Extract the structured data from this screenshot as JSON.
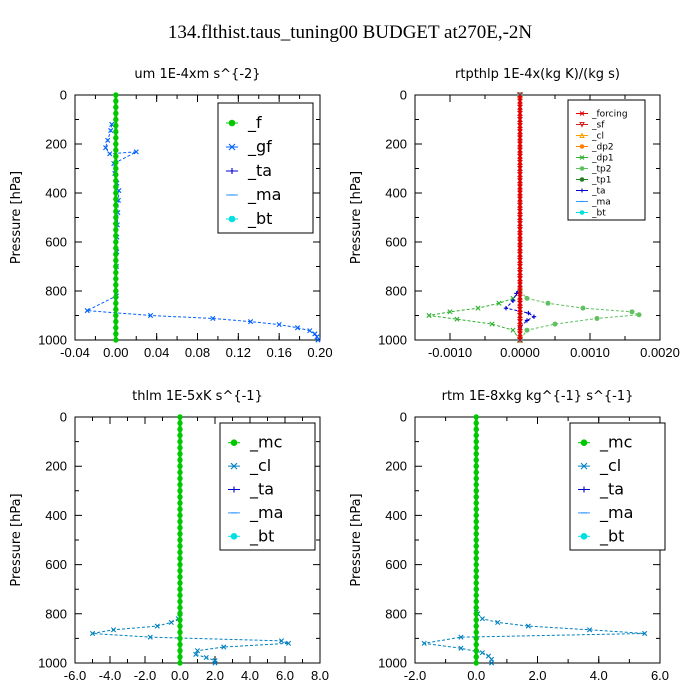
{
  "figure_title": "134.flthist.taus_tuning00  BUDGET at270E,-2N",
  "colors": {
    "f": "#00c800",
    "gf": "#0060ff",
    "ta": "#0000d0",
    "ma": "#3399ff",
    "bt": "#00e0e0",
    "mc": "#00c800",
    "cl": "#0080c0",
    "forcing": "#e00000",
    "sf": "#d02020",
    "cl_orange": "#ffa000",
    "dp2": "#ff8000",
    "dp1": "#30b030",
    "tp2": "#60c060",
    "tp1": "#208020"
  },
  "chart_data": [
    {
      "type": "line",
      "title": "um   1E-4xm s^{-2}",
      "ylabel": "Pressure [hPa]",
      "xlabel": "",
      "xlim": [
        -0.04,
        0.2
      ],
      "ylim": [
        1000,
        0
      ],
      "xticks": [
        "-0.04",
        "0.00",
        "0.04",
        "0.08",
        "0.12",
        "0.16",
        "0.20"
      ],
      "yticks": [
        "0",
        "200",
        "400",
        "600",
        "800",
        "1000"
      ],
      "legend": "top-right",
      "series": [
        {
          "name": "_f",
          "color_key": "f",
          "marker": "o",
          "x": [
            0,
            0,
            0,
            0,
            0,
            0,
            0,
            0,
            0,
            0,
            0,
            0,
            0,
            0,
            0,
            0,
            0,
            0,
            0,
            0,
            0,
            0,
            0,
            0,
            0,
            0,
            0,
            0,
            0,
            0,
            0,
            0,
            0,
            0,
            0,
            0,
            0,
            0,
            0,
            0,
            0
          ],
          "y": [
            0,
            25,
            50,
            75,
            100,
            125,
            150,
            175,
            200,
            225,
            250,
            275,
            300,
            325,
            350,
            375,
            400,
            425,
            450,
            475,
            500,
            525,
            550,
            575,
            600,
            625,
            650,
            675,
            700,
            725,
            750,
            775,
            800,
            825,
            850,
            875,
            900,
            925,
            950,
            975,
            1000
          ]
        },
        {
          "name": "_gf",
          "color_key": "gf",
          "marker": "x",
          "x": [
            -0.004,
            -0.005,
            -0.008,
            -0.01,
            -0.006,
            0.02,
            -0.002,
            -0.001,
            0.001,
            0.003,
            0.0025,
            0.002,
            0.0015,
            0.001,
            0.001,
            0.0005,
            0.0005,
            -0.028,
            0.034,
            0.095,
            0.132,
            0.16,
            0.178,
            0.19,
            0.195,
            0.197,
            0.198
          ],
          "y": [
            120,
            145,
            185,
            215,
            240,
            232,
            280,
            320,
            360,
            390,
            430,
            480,
            530,
            580,
            640,
            700,
            820,
            880,
            900,
            912,
            925,
            937,
            950,
            962,
            975,
            987,
            1000
          ]
        },
        {
          "name": "_ta",
          "color_key": "ta",
          "marker": "+",
          "x": [
            0,
            0,
            0,
            0,
            0,
            0
          ],
          "y": [
            0,
            200,
            400,
            600,
            800,
            1000
          ]
        },
        {
          "name": "_ma",
          "color_key": "ma",
          "marker": "-",
          "x": [
            0,
            0,
            0,
            0,
            0,
            0
          ],
          "y": [
            0,
            200,
            400,
            600,
            800,
            1000
          ]
        },
        {
          "name": "_bt",
          "color_key": "bt",
          "marker": "o",
          "x": [
            0,
            0,
            0,
            0,
            0,
            0
          ],
          "y": [
            0,
            200,
            400,
            600,
            800,
            1000
          ]
        }
      ]
    },
    {
      "type": "line",
      "title": "rtpthlp   1E-4x(kg K)/(kg s)",
      "ylabel": "Pressure [hPa]",
      "xlabel": "",
      "xlim": [
        -0.0015,
        0.002
      ],
      "ylim": [
        1000,
        0
      ],
      "xticks": [
        "-0.0010",
        "0.0000",
        "0.0010",
        "0.0020"
      ],
      "yticks": [
        "0",
        "200",
        "400",
        "600",
        "800",
        "1000"
      ],
      "legend": "top-right",
      "series": [
        {
          "name": "_forcing",
          "color_key": "forcing",
          "marker": "x",
          "x": [
            0,
            0,
            0,
            0,
            0,
            0,
            0,
            0,
            0,
            0,
            0,
            0,
            0,
            0,
            0,
            0,
            0,
            0,
            0,
            0,
            0,
            0,
            0,
            0,
            0,
            0,
            0,
            0,
            0,
            0,
            0,
            0,
            0,
            0,
            0,
            0,
            0,
            0,
            0,
            0,
            0
          ],
          "y": [
            0,
            25,
            50,
            75,
            100,
            125,
            150,
            175,
            200,
            225,
            250,
            275,
            300,
            325,
            350,
            375,
            400,
            425,
            450,
            475,
            500,
            525,
            550,
            575,
            600,
            625,
            650,
            675,
            700,
            725,
            750,
            775,
            800,
            825,
            850,
            875,
            900,
            925,
            950,
            975,
            1000
          ]
        },
        {
          "name": "_sf",
          "color_key": "sf",
          "marker": "v",
          "x": [
            0,
            0
          ],
          "y": [
            0,
            1000
          ]
        },
        {
          "name": "_cl",
          "color_key": "cl_orange",
          "marker": "^",
          "x": [
            0,
            0
          ],
          "y": [
            0,
            1000
          ]
        },
        {
          "name": "_dp2",
          "color_key": "dp2",
          "marker": "o",
          "x": [
            0,
            0
          ],
          "y": [
            0,
            1000
          ]
        },
        {
          "name": "_dp1",
          "color_key": "dp1",
          "marker": "x",
          "x": [
            0,
            -0.0001,
            -0.0003,
            -0.0006,
            -0.001,
            -0.0013,
            -0.0009,
            -0.0004,
            -0.0001,
            0
          ],
          "y": [
            800,
            830,
            850,
            870,
            885,
            900,
            915,
            935,
            960,
            1000
          ]
        },
        {
          "name": "_tp2",
          "color_key": "tp2",
          "marker": "o",
          "x": [
            0,
            0.0001,
            0.0004,
            0.0009,
            0.0016,
            0.0017,
            0.0011,
            0.0005,
            0.0001,
            0
          ],
          "y": [
            800,
            830,
            850,
            870,
            885,
            897,
            912,
            935,
            960,
            1000
          ]
        },
        {
          "name": "_tp1",
          "color_key": "tp1",
          "marker": "*",
          "x": [
            0,
            0
          ],
          "y": [
            0,
            1000
          ]
        },
        {
          "name": "_ta",
          "color_key": "ta",
          "marker": "+",
          "x": [
            0,
            -5e-05,
            -0.0001,
            -0.0002,
            0.00012,
            0.0002,
            0.0001,
            0
          ],
          "y": [
            780,
            810,
            840,
            870,
            890,
            905,
            920,
            950
          ]
        },
        {
          "name": "_ma",
          "color_key": "ma",
          "marker": "-",
          "x": [
            0,
            0
          ],
          "y": [
            0,
            1000
          ]
        },
        {
          "name": "_bt",
          "color_key": "bt",
          "marker": "o",
          "x": [
            0,
            0
          ],
          "y": [
            0,
            1000
          ]
        }
      ]
    },
    {
      "type": "line",
      "title": "thlm   1E-5xK s^{-1}",
      "ylabel": "Pressure [hPa]",
      "xlabel": "",
      "xlim": [
        -6,
        8
      ],
      "ylim": [
        1000,
        0
      ],
      "xticks": [
        "-6.0",
        "-4.0",
        "-2.0",
        "0.0",
        "2.0",
        "4.0",
        "6.0",
        "8.0"
      ],
      "yticks": [
        "0",
        "200",
        "400",
        "600",
        "800",
        "1000"
      ],
      "legend": "top-right",
      "series": [
        {
          "name": "_mc",
          "color_key": "mc",
          "marker": "o",
          "x": [
            0,
            0,
            0,
            0,
            0,
            0,
            0,
            0,
            0,
            0,
            0,
            0,
            0,
            0,
            0,
            0,
            0,
            0,
            0,
            0,
            0,
            0,
            0,
            0,
            0,
            0,
            0,
            0,
            0,
            0,
            0,
            0,
            0,
            0,
            0,
            0,
            0,
            0,
            0,
            0,
            0
          ],
          "y": [
            0,
            25,
            50,
            75,
            100,
            125,
            150,
            175,
            200,
            225,
            250,
            275,
            300,
            325,
            350,
            375,
            400,
            425,
            450,
            475,
            500,
            525,
            550,
            575,
            600,
            625,
            650,
            675,
            700,
            725,
            750,
            775,
            800,
            825,
            850,
            875,
            900,
            925,
            950,
            975,
            1000
          ]
        },
        {
          "name": "_cl",
          "color_key": "cl",
          "marker": "x",
          "x": [
            0,
            -0.1,
            -0.5,
            -1.3,
            -3.8,
            -5.0,
            -1.7,
            5.8,
            6.2,
            2.5,
            1.0,
            0.9,
            1.5,
            2.0,
            2.0
          ],
          "y": [
            800,
            820,
            835,
            850,
            865,
            880,
            895,
            910,
            920,
            935,
            950,
            965,
            978,
            990,
            1000
          ]
        },
        {
          "name": "_ta",
          "color_key": "ta",
          "marker": "+",
          "x": [
            0,
            0
          ],
          "y": [
            0,
            1000
          ]
        },
        {
          "name": "_ma",
          "color_key": "ma",
          "marker": "-",
          "x": [
            0,
            0
          ],
          "y": [
            0,
            1000
          ]
        },
        {
          "name": "_bt",
          "color_key": "bt",
          "marker": "o",
          "x": [
            0,
            0
          ],
          "y": [
            0,
            1000
          ]
        }
      ]
    },
    {
      "type": "line",
      "title": "rtm   1E-8xkg kg^{-1} s^{-1}",
      "ylabel": "Pressure [hPa]",
      "xlabel": "",
      "xlim": [
        -2,
        6
      ],
      "ylim": [
        1000,
        0
      ],
      "xticks": [
        "-2.0",
        "0.0",
        "2.0",
        "4.0",
        "6.0"
      ],
      "yticks": [
        "0",
        "200",
        "400",
        "600",
        "800",
        "1000"
      ],
      "legend": "top-right",
      "series": [
        {
          "name": "_mc",
          "color_key": "mc",
          "marker": "o",
          "x": [
            0,
            0,
            0,
            0,
            0,
            0,
            0,
            0,
            0,
            0,
            0,
            0,
            0,
            0,
            0,
            0,
            0,
            0,
            0,
            0,
            0,
            0,
            0,
            0,
            0,
            0,
            0,
            0,
            0,
            0,
            0,
            0,
            0,
            0,
            0,
            0,
            0,
            0,
            0,
            0,
            0
          ],
          "y": [
            0,
            25,
            50,
            75,
            100,
            125,
            150,
            175,
            200,
            225,
            250,
            275,
            300,
            325,
            350,
            375,
            400,
            425,
            450,
            475,
            500,
            525,
            550,
            575,
            600,
            625,
            650,
            675,
            700,
            725,
            750,
            775,
            800,
            825,
            850,
            875,
            900,
            925,
            950,
            975,
            1000
          ]
        },
        {
          "name": "_cl",
          "color_key": "cl",
          "marker": "x",
          "x": [
            0,
            0.05,
            0.2,
            0.7,
            1.7,
            3.7,
            5.5,
            -0.5,
            -1.7,
            -0.5,
            0.2,
            0.4,
            0.5,
            0.5
          ],
          "y": [
            780,
            800,
            820,
            835,
            850,
            865,
            880,
            895,
            920,
            940,
            958,
            972,
            985,
            1000
          ]
        },
        {
          "name": "_ta",
          "color_key": "ta",
          "marker": "+",
          "x": [
            0,
            0
          ],
          "y": [
            0,
            1000
          ]
        },
        {
          "name": "_ma",
          "color_key": "ma",
          "marker": "-",
          "x": [
            0,
            0
          ],
          "y": [
            0,
            1000
          ]
        },
        {
          "name": "_bt",
          "color_key": "bt",
          "marker": "o",
          "x": [
            0,
            0
          ],
          "y": [
            0,
            1000
          ]
        }
      ]
    }
  ]
}
